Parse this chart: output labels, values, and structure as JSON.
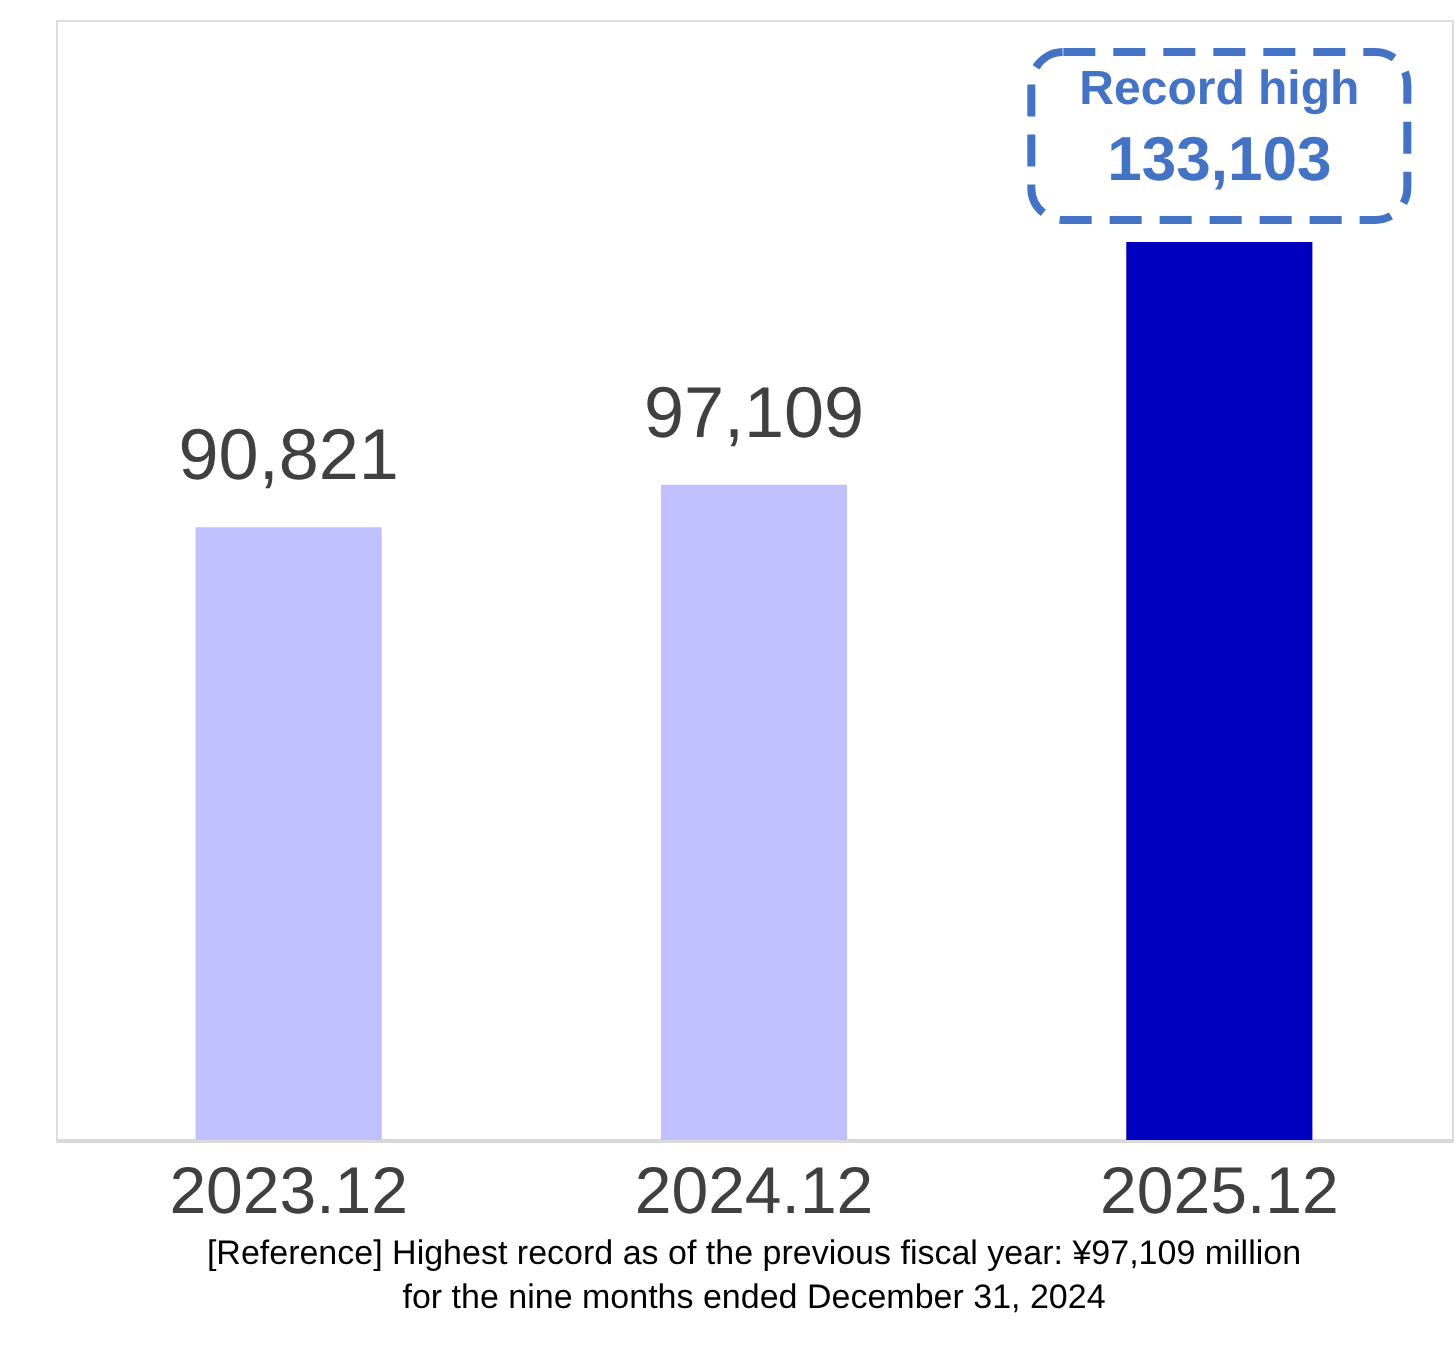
{
  "chart_data": {
    "type": "bar",
    "categories": [
      "2023.12",
      "2024.12",
      "2025.12"
    ],
    "values": [
      90821,
      97109,
      133103
    ],
    "colors": [
      "#c0c0ff",
      "#c0c0ff",
      "#0000c0"
    ],
    "value_labels": [
      "90,821",
      "97,109",
      "133,103"
    ],
    "ylim": [
      0,
      166000
    ],
    "tick_labels": "x",
    "grid": false,
    "annotations": [
      {
        "text": "Record high",
        "x": "2025.12",
        "y": 133103
      },
      "[Reference] Highest record as of the previous fiscal year: ¥97,109 million",
      "for the nine months ended December 31, 2024"
    ]
  }
}
